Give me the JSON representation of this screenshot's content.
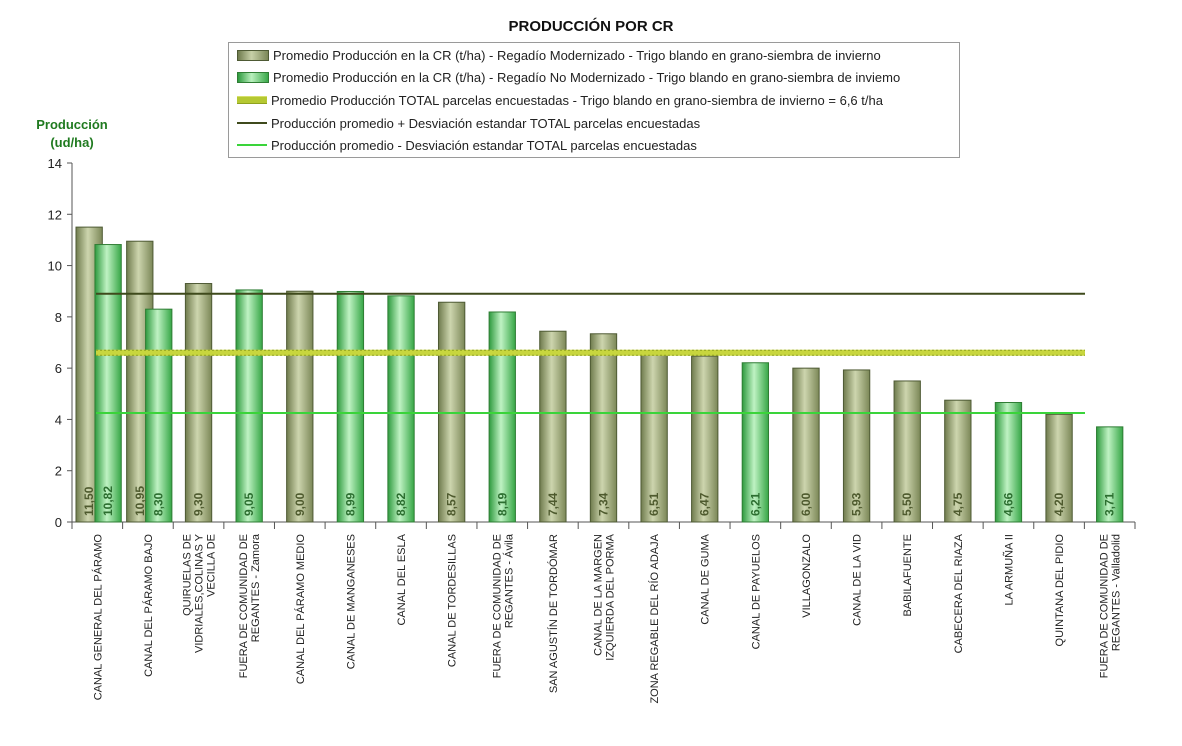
{
  "chart_data": {
    "type": "bar",
    "title": "PRODUCCIÓN POR CR",
    "ylabel": "Producción (ud/ha)",
    "ylim": [
      0,
      14
    ],
    "yticks": [
      0,
      2,
      4,
      6,
      8,
      10,
      12,
      14
    ],
    "grid": false,
    "legend_position": "top",
    "categories": [
      "CANAL GENERAL DEL PÁRAMO",
      "CANAL DEL PÁRAMO BAJO",
      "QUIRUELAS DE VIDRIALES,COLINAS Y VECILLA DE TRASMONTE,VILLANAZAR...",
      "FUERA DE COMUNIDAD DE REGANTES - Zamora",
      "CANAL DEL PÁRAMO MEDIO",
      "CANAL DE MANGANESES",
      "CANAL DEL ESLA",
      "CANAL DE TORDESILLAS",
      "FUERA DE COMUNIDAD DE REGANTES - Ávila",
      "SAN AGUSTÍN DE TORDÓMAR",
      "CANAL DE LA MARGEN IZQUIERDA DEL PORMA",
      "ZONA REGABLE DEL RÍO ADAJA",
      "CANAL DE GUMA",
      "CANAL DE PAYUELOS",
      "VILLAGONZALO",
      "CANAL DE LA VID",
      "BABILAFUENTE",
      "CABECERA DEL RIAZA",
      "LA ARMUÑA II",
      "QUINTANA DEL PIDIO",
      "FUERA DE COMUNIDAD DE REGANTES - Valladolid"
    ],
    "series": [
      {
        "name": "Promedio Producción en la CR (t/ha) - Regadío Modernizado  - Trigo blando en grano-siembra de invierno",
        "color": "#9aa574",
        "values": [
          11.5,
          10.95,
          9.3,
          null,
          9.0,
          null,
          null,
          8.57,
          null,
          7.44,
          7.34,
          6.51,
          6.47,
          null,
          6.0,
          5.93,
          5.5,
          4.75,
          null,
          4.2,
          null
        ],
        "labels": [
          "11,50",
          "10,95",
          "9,30",
          "",
          "9,00",
          "",
          "",
          "8,57",
          "",
          "7,44",
          "7,34",
          "6,51",
          "6,47",
          "",
          "6,00",
          "5,93",
          "5,50",
          "4,75",
          "",
          "4,20",
          ""
        ]
      },
      {
        "name": "Promedio Producción en la CR (t/ha) - Regadío No Modernizado  - Trigo blando en grano-siembra de inviemo",
        "color": "#4cc45a",
        "values": [
          10.82,
          8.3,
          null,
          9.05,
          null,
          8.99,
          8.82,
          null,
          8.19,
          null,
          null,
          null,
          null,
          6.21,
          null,
          null,
          null,
          null,
          4.66,
          null,
          3.71
        ],
        "labels": [
          "10,82",
          "8,30",
          "",
          "9,05",
          "",
          "8,99",
          "8,82",
          "",
          "8,19",
          "",
          "",
          "",
          "",
          "6,21",
          "",
          "",
          "",
          "",
          "4,66",
          "",
          "3,71"
        ]
      }
    ],
    "reference_lines": [
      {
        "name": "Promedio Producción TOTAL parcelas encuestadas - Trigo blando en grano-siembra de invierno = 6,6 t/ha",
        "value": 6.6,
        "color": "#b5c832",
        "style": "thick"
      },
      {
        "name": "Producción promedio + Desviación estandar TOTAL parcelas encuestadas",
        "value": 8.9,
        "color": "#3f4a1c",
        "style": "thin"
      },
      {
        "name": "Producción promedio - Desviación estandar TOTAL parcelas encuestadas",
        "value": 4.25,
        "color": "#3ad43a",
        "style": "thin"
      }
    ]
  },
  "text": {
    "title": "PRODUCCIÓN POR CR",
    "ylabel_line1": "Producción",
    "ylabel_line2": "(ud/ha)",
    "legend_1": "Promedio Producción en la CR (t/ha) - Regadío Modernizado  - Trigo blando en grano-siembra de invierno",
    "legend_2": "Promedio Producción en la CR (t/ha) - Regadío No Modernizado  - Trigo blando en grano-siembra de inviemo",
    "legend_3": "Promedio Producción TOTAL parcelas encuestadas - Trigo blando en grano-siembra de invierno = 6,6 t/ha",
    "legend_4": "Producción promedio + Desviación estandar TOTAL parcelas encuestadas",
    "legend_5": "Producción promedio - Desviación estandar TOTAL parcelas encuestadas"
  }
}
